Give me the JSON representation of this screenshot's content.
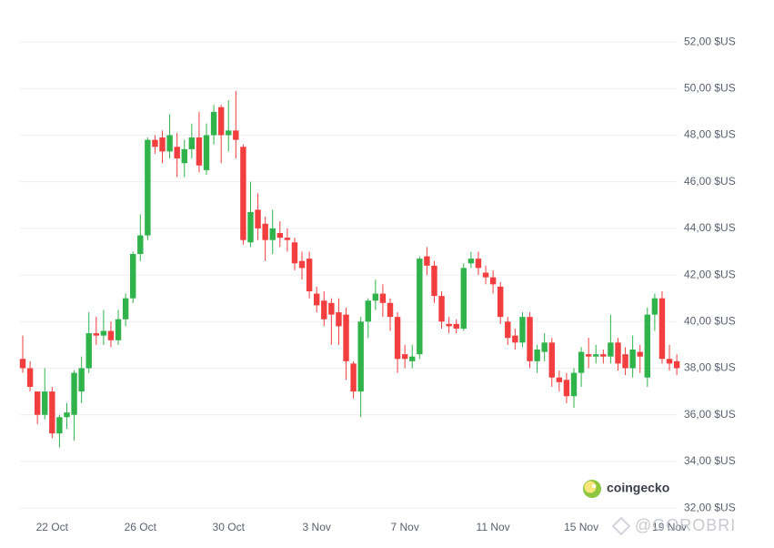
{
  "chart_data": {
    "type": "candlestick",
    "categories": [
      null,
      null,
      null,
      null,
      "22 Oct",
      null,
      null,
      null,
      null,
      null,
      null,
      null,
      null,
      null,
      null,
      null,
      "26 Oct",
      null,
      null,
      null,
      null,
      null,
      null,
      null,
      null,
      null,
      null,
      null,
      "30 Oct",
      null,
      null,
      null,
      null,
      null,
      null,
      null,
      null,
      null,
      null,
      null,
      "3 Nov",
      null,
      null,
      null,
      null,
      null,
      null,
      null,
      null,
      null,
      null,
      null,
      "7 Nov",
      null,
      null,
      null,
      null,
      null,
      null,
      null,
      null,
      null,
      null,
      null,
      "11 Nov",
      null,
      null,
      null,
      null,
      null,
      null,
      null,
      null,
      null,
      null,
      null,
      "15 Nov",
      null,
      null,
      null,
      null,
      null,
      null,
      null,
      null,
      null,
      null,
      null,
      "19 Nov",
      null
    ],
    "open": [
      38.4,
      38.0,
      37.0,
      36.0,
      37.0,
      35.2,
      35.9,
      36.0,
      37.0,
      38.0,
      39.5,
      39.4,
      39.6,
      39.2,
      40.1,
      41.0,
      42.9,
      43.7,
      47.8,
      47.9,
      47.3,
      47.5,
      46.8,
      47.4,
      47.9,
      46.5,
      48.0,
      49.2,
      48.0,
      48.2,
      47.5,
      43.4,
      44.8,
      44.2,
      43.5,
      43.8,
      43.6,
      43.4,
      42.6,
      42.7,
      41.2,
      40.9,
      40.8,
      40.4,
      40.3,
      38.2,
      37.0,
      40.0,
      40.9,
      41.2,
      40.8,
      40.2,
      38.6,
      38.3,
      38.6,
      42.8,
      42.4,
      41.1,
      39.9,
      39.9,
      39.7,
      42.5,
      42.7,
      42.1,
      41.9,
      41.5,
      40.0,
      39.4,
      39.1,
      40.2,
      38.3,
      38.7,
      39.1,
      37.6,
      37.5,
      36.8,
      37.8,
      38.6,
      38.5,
      38.6,
      38.5,
      39.1,
      38.6,
      38.0,
      38.7,
      37.6,
      40.3,
      41.0,
      38.4,
      38.3
    ],
    "high": [
      39.4,
      38.3,
      37.0,
      38.0,
      37.2,
      36.0,
      36.5,
      37.9,
      38.5,
      40.4,
      40.2,
      40.5,
      40.0,
      40.5,
      41.2,
      43.0,
      44.6,
      47.9,
      48.0,
      48.2,
      48.9,
      48.1,
      47.8,
      48.5,
      49.0,
      48.5,
      49.3,
      49.3,
      49.5,
      49.9,
      47.6,
      46.0,
      45.5,
      44.5,
      44.8,
      44.3,
      44.0,
      43.6,
      43.0,
      43.0,
      41.5,
      41.3,
      41.0,
      41.0,
      40.6,
      38.3,
      40.2,
      41.0,
      41.8,
      41.6,
      41.0,
      40.4,
      39.0,
      39.0,
      42.8,
      43.2,
      42.6,
      41.3,
      40.2,
      40.1,
      42.5,
      43.0,
      43.0,
      42.4,
      42.2,
      41.7,
      40.2,
      39.7,
      40.4,
      40.4,
      39.0,
      39.5,
      39.3,
      37.9,
      37.8,
      38.0,
      38.9,
      39.3,
      39.0,
      38.8,
      40.3,
      39.3,
      38.9,
      39.4,
      39.0,
      40.6,
      41.2,
      41.3,
      39.0,
      38.6
    ],
    "low": [
      37.8,
      37.0,
      35.6,
      35.8,
      35.0,
      34.6,
      35.4,
      34.9,
      36.5,
      37.8,
      39.0,
      39.0,
      38.9,
      39.0,
      39.8,
      40.8,
      42.6,
      43.5,
      47.2,
      46.8,
      47.0,
      46.2,
      46.2,
      47.0,
      46.4,
      46.3,
      47.6,
      46.8,
      47.3,
      47.0,
      43.3,
      43.2,
      43.5,
      42.6,
      42.9,
      43.2,
      43.0,
      42.2,
      41.8,
      41.0,
      40.4,
      39.8,
      39.0,
      39.0,
      37.5,
      36.7,
      35.9,
      39.3,
      40.5,
      40.2,
      39.6,
      37.8,
      38.0,
      38.0,
      38.4,
      42.0,
      40.8,
      39.7,
      39.5,
      39.5,
      39.6,
      42.3,
      42.0,
      41.6,
      41.2,
      39.9,
      39.0,
      38.8,
      38.9,
      38.0,
      37.8,
      38.3,
      37.2,
      37.0,
      36.5,
      36.3,
      37.2,
      38.0,
      38.2,
      38.2,
      38.2,
      37.9,
      37.7,
      37.6,
      37.8,
      37.2,
      39.6,
      38.2,
      37.9,
      37.7
    ],
    "close": [
      38.0,
      37.2,
      36.0,
      37.0,
      35.2,
      35.9,
      36.1,
      37.8,
      38.0,
      39.5,
      39.4,
      39.6,
      39.2,
      40.1,
      41.0,
      42.9,
      43.7,
      47.8,
      47.5,
      47.3,
      48.0,
      47.0,
      47.4,
      47.9,
      46.7,
      48.0,
      49.0,
      48.0,
      48.2,
      47.8,
      43.5,
      44.7,
      44.0,
      43.5,
      44.0,
      43.6,
      43.5,
      42.5,
      42.3,
      41.3,
      40.7,
      40.1,
      40.3,
      39.8,
      38.3,
      37.0,
      40.0,
      40.9,
      41.2,
      40.8,
      40.2,
      38.4,
      38.4,
      38.5,
      42.7,
      42.4,
      41.1,
      40.0,
      39.8,
      39.7,
      42.3,
      42.7,
      42.3,
      41.9,
      41.6,
      40.2,
      39.3,
      39.1,
      40.2,
      38.3,
      38.8,
      39.1,
      37.6,
      37.4,
      36.8,
      37.8,
      38.7,
      38.5,
      38.6,
      38.5,
      39.1,
      38.2,
      38.0,
      38.8,
      38.5,
      40.3,
      41.0,
      38.4,
      38.2,
      38.0
    ],
    "up_color": "#2fb34a",
    "down_color": "#f23e3e",
    "ylim": [
      31.5,
      53.8
    ],
    "yticks": [
      {
        "value": 32,
        "label": "32,00 $US"
      },
      {
        "value": 34,
        "label": "34,00 $US"
      },
      {
        "value": 36,
        "label": "36,00 $US"
      },
      {
        "value": 38,
        "label": "38,00 $US"
      },
      {
        "value": 40,
        "label": "40,00 $US"
      },
      {
        "value": 42,
        "label": "42,00 $US"
      },
      {
        "value": 44,
        "label": "44,00 $US"
      },
      {
        "value": 46,
        "label": "46,00 $US"
      },
      {
        "value": 48,
        "label": "48,00 $US"
      },
      {
        "value": 50,
        "label": "50,00 $US"
      },
      {
        "value": 52,
        "label": "52,00 $US"
      }
    ],
    "grid": true,
    "brand": "coingecko",
    "watermark": "@GOROBRI"
  }
}
